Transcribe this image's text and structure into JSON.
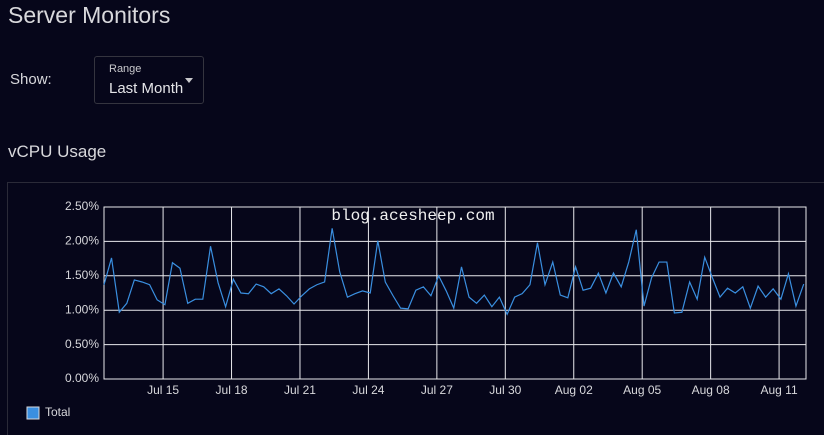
{
  "header": {
    "title": "Server Monitors"
  },
  "controls": {
    "show_label": "Show:",
    "range_label": "Range",
    "range_value": "Last Month"
  },
  "chart_data": {
    "type": "line",
    "title": "vCPU Usage",
    "annotation": "blog.acesheep.com",
    "x": [
      12.41,
      12.74,
      13.08,
      13.41,
      13.74,
      14.08,
      14.41,
      14.74,
      15.08,
      15.41,
      15.74,
      16.08,
      16.41,
      16.74,
      17.08,
      17.41,
      17.74,
      18.08,
      18.41,
      18.74,
      19.08,
      19.41,
      19.74,
      20.08,
      20.41,
      20.74,
      21.08,
      21.41,
      21.74,
      22.08,
      22.41,
      22.74,
      23.08,
      23.41,
      23.74,
      24.08,
      24.41,
      24.74,
      25.08,
      25.41,
      25.74,
      26.08,
      26.41,
      26.74,
      27.08,
      27.41,
      27.74,
      28.08,
      28.41,
      28.74,
      29.08,
      29.41,
      29.74,
      30.08,
      30.41,
      30.74,
      31.08,
      31.41,
      31.74,
      32.08,
      32.41,
      32.74,
      33.08,
      33.41,
      33.74,
      34.08,
      34.41,
      34.74,
      35.08,
      35.41,
      35.74,
      36.08,
      36.41,
      36.74,
      37.08,
      37.41,
      37.74,
      38.08,
      38.41,
      38.74,
      39.08,
      39.41,
      39.74,
      40.08,
      40.41,
      40.74,
      41.08,
      41.41,
      41.74,
      42.08,
      42.41,
      42.74,
      43.08
    ],
    "series": [
      {
        "name": "Total",
        "color": "#3a8fe0",
        "values": [
          1.37,
          1.76,
          0.97,
          1.1,
          1.44,
          1.41,
          1.37,
          1.15,
          1.08,
          1.69,
          1.61,
          1.1,
          1.16,
          1.16,
          1.93,
          1.4,
          1.05,
          1.45,
          1.25,
          1.24,
          1.38,
          1.34,
          1.24,
          1.31,
          1.21,
          1.09,
          1.21,
          1.31,
          1.37,
          1.41,
          2.19,
          1.56,
          1.19,
          1.24,
          1.28,
          1.25,
          2.01,
          1.41,
          1.21,
          1.03,
          1.02,
          1.29,
          1.34,
          1.21,
          1.5,
          1.28,
          1.03,
          1.63,
          1.19,
          1.1,
          1.22,
          1.05,
          1.19,
          0.94,
          1.19,
          1.24,
          1.37,
          1.98,
          1.37,
          1.7,
          1.22,
          1.18,
          1.63,
          1.29,
          1.32,
          1.54,
          1.25,
          1.54,
          1.34,
          1.7,
          2.17,
          1.06,
          1.47,
          1.7,
          1.7,
          0.96,
          0.97,
          1.41,
          1.16,
          1.77,
          1.47,
          1.19,
          1.32,
          1.25,
          1.34,
          1.03,
          1.35,
          1.19,
          1.31,
          1.16,
          1.53,
          1.06,
          1.38
        ]
      }
    ],
    "xlim": [
      12.41,
      43.18
    ],
    "xticks": [
      {
        "value": 15,
        "label": "Jul 15"
      },
      {
        "value": 18,
        "label": "Jul 18"
      },
      {
        "value": 21,
        "label": "Jul 21"
      },
      {
        "value": 24,
        "label": "Jul 24"
      },
      {
        "value": 27,
        "label": "Jul 27"
      },
      {
        "value": 30,
        "label": "Jul 30"
      },
      {
        "value": 33,
        "label": "Aug 02"
      },
      {
        "value": 36,
        "label": "Aug 05"
      },
      {
        "value": 39,
        "label": "Aug 08"
      },
      {
        "value": 42,
        "label": "Aug 11"
      }
    ],
    "ylim": [
      0,
      2.5
    ],
    "yticks": [
      {
        "value": 0,
        "label": "0.00%"
      },
      {
        "value": 0.5,
        "label": "0.50%"
      },
      {
        "value": 1,
        "label": "1.00%"
      },
      {
        "value": 1.5,
        "label": "1.50%"
      },
      {
        "value": 2,
        "label": "2.00%"
      },
      {
        "value": 2.5,
        "label": "2.50%"
      }
    ],
    "grid": true,
    "legend": "bottom-left"
  }
}
